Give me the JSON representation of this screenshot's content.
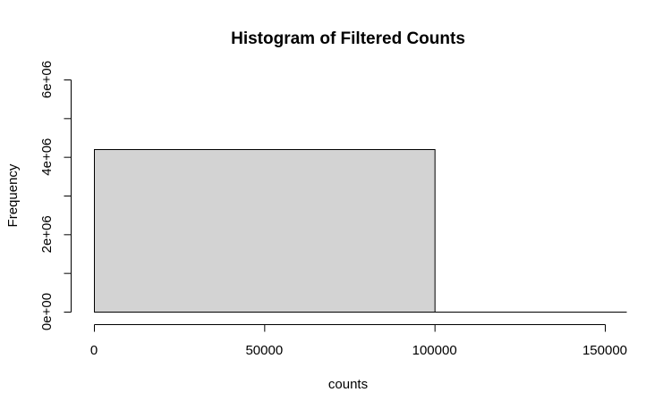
{
  "chart_data": {
    "type": "bar",
    "subtype": "histogram",
    "title": "Histogram of Filtered Counts",
    "xlabel": "counts",
    "ylabel": "Frequency",
    "bins": [
      {
        "start": 0,
        "end": 100000,
        "count": 4190000
      },
      {
        "start": 100000,
        "end": 150000,
        "count": 0
      }
    ],
    "xlim": [
      0,
      150000
    ],
    "ylim": [
      0,
      6000000
    ],
    "x_ticks": [
      {
        "value": 0,
        "label": "0"
      },
      {
        "value": 50000,
        "label": "50000"
      },
      {
        "value": 100000,
        "label": "100000"
      },
      {
        "value": 150000,
        "label": "150000"
      }
    ],
    "y_ticks": [
      {
        "value": 0,
        "label": "0e+00"
      },
      {
        "value": 1000000,
        "label": ""
      },
      {
        "value": 2000000,
        "label": "2e+06"
      },
      {
        "value": 3000000,
        "label": ""
      },
      {
        "value": 4000000,
        "label": "4e+06"
      },
      {
        "value": 5000000,
        "label": ""
      },
      {
        "value": 6000000,
        "label": "6e+06"
      }
    ],
    "grid": false,
    "legend": "none",
    "bar_color": "#d3d3d3",
    "edge_color": "#000000"
  }
}
